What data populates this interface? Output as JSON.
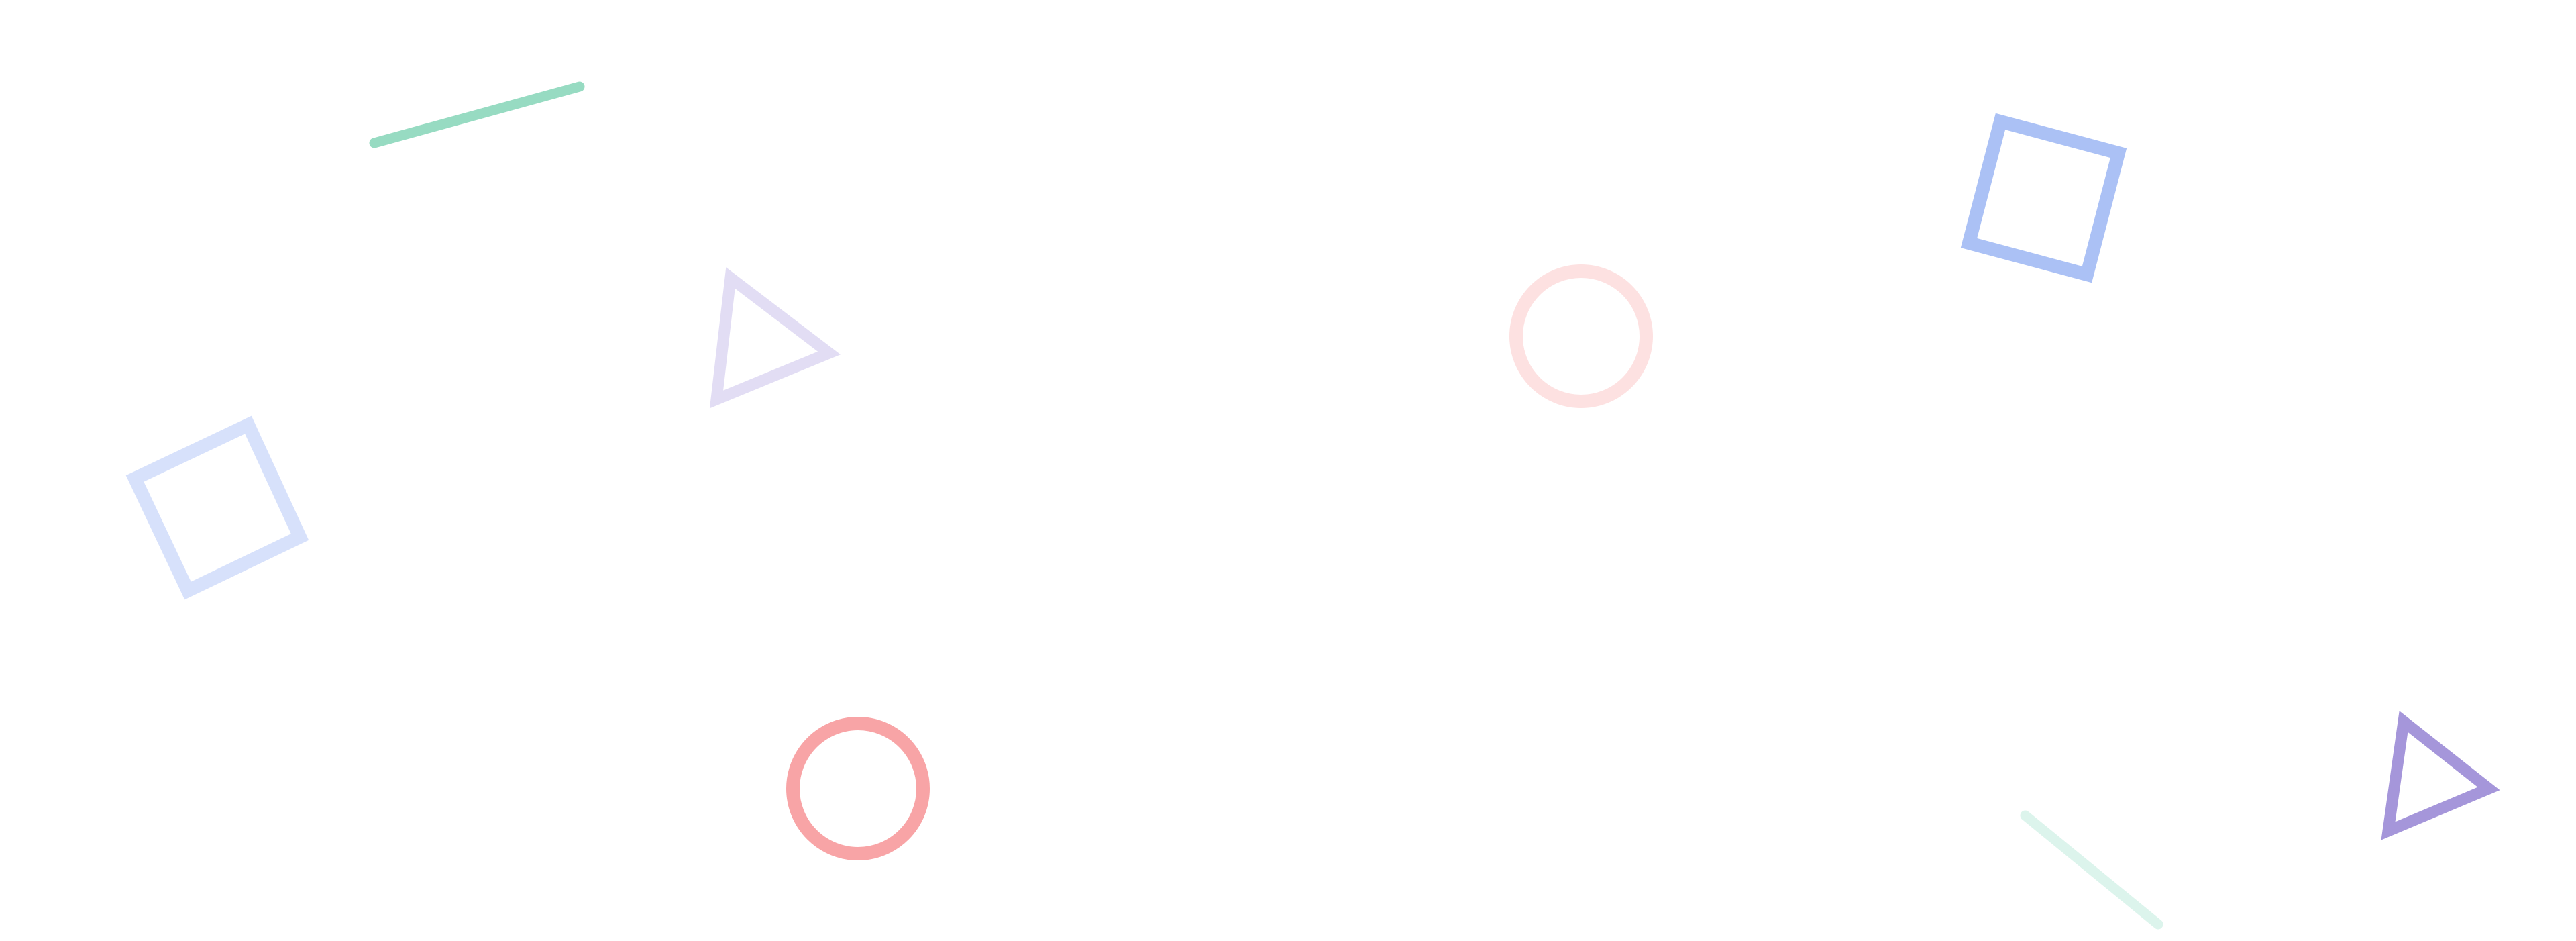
{
  "background_color": "#ffffff",
  "shapes": [
    {
      "name": "green-line-shape",
      "kind": "line",
      "color": "#97dbc2"
    },
    {
      "name": "lavender-triangle-shape",
      "kind": "triangle",
      "color": "#e2ddf4"
    },
    {
      "name": "light-pink-circle-shape",
      "kind": "circle",
      "color": "#fde1e1"
    },
    {
      "name": "blue-square-shape",
      "kind": "square",
      "color": "#abc1f5"
    },
    {
      "name": "light-blue-square-shape",
      "kind": "square",
      "color": "#d7e1fb"
    },
    {
      "name": "coral-circle-shape",
      "kind": "circle",
      "color": "#f8a4a6"
    },
    {
      "name": "mint-line-shape",
      "kind": "line",
      "color": "#dcf4ec"
    },
    {
      "name": "purple-triangle-shape",
      "kind": "triangle",
      "color": "#a596da"
    }
  ]
}
